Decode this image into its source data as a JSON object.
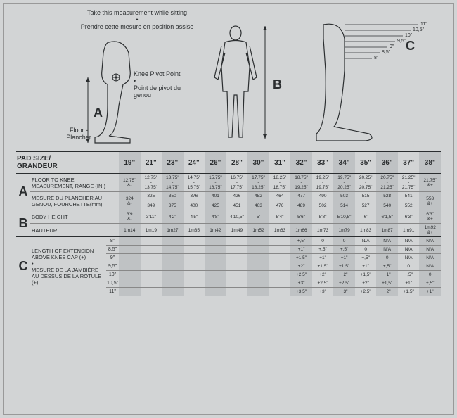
{
  "bg": "#d2d4d5",
  "shade": "#bfc2c4",
  "ink": "#2b2e30",
  "top_text_en": "Take this measurement while sitting",
  "top_text_fr": "Prendre cette mesure en position assise",
  "knee_en": "Knee Pivot Point",
  "knee_fr": "Point de pivot du genou",
  "floor": "Floor - Plancher",
  "c_scale": [
    "11\"",
    "10,5\"",
    "10\"",
    "9,5\"",
    "9\"",
    "8,5\"",
    "8\""
  ],
  "title": "PAD SIZE/ GRANDEUR",
  "sizes": [
    "19\"",
    "21\"",
    "23\"",
    "24\"",
    "26\"",
    "28\"",
    "30\"",
    "31\"",
    "32\"",
    "33\"",
    "34\"",
    "35\"",
    "36\"",
    "37\"",
    "38\""
  ],
  "shaded": [
    0,
    2,
    4,
    6,
    8,
    10,
    12,
    14
  ],
  "A": {
    "hdr_en": "FLOOR TO KNEE MEASUREMENT, RANGE (IN.)",
    "hdr_fr": "MESURE DU PLANCHER AU GENOU, FOURCHETTE(mm)",
    "in": [
      "12,75\" &-",
      "12,75\" - 13,75\"",
      "13,75\" - 14,75\"",
      "14,75\" - 15,75\"",
      "15,75\" - 16,75\"",
      "16,75\" - 17,75\"",
      "17,75\" - 18,25\"",
      "18,25\" - 18,75\"",
      "18,75\" - 19,25\"",
      "19,25\" - 19,75\"",
      "19,75\" - 20,25\"",
      "20,25\" - 20,75\"",
      "20,75\" - 21,25\"",
      "21,25\" - 21,75\"",
      "21,75\" &+"
    ],
    "mm": [
      "324 &-",
      "325 - 349",
      "350 - 375",
      "376 - 400",
      "401 - 425",
      "426 - 451",
      "452 - 463",
      "464 - 476",
      "477 - 489",
      "490 - 502",
      "503 - 514",
      "515 - 527",
      "528 - 540",
      "541 - 552",
      "553 &+"
    ]
  },
  "B": {
    "hdr_en": "BODY HEIGHT",
    "hdr_fr": "HAUTEUR",
    "ft": [
      "3'9 &-",
      "3'11\"",
      "4'2\"",
      "4'5\"",
      "4'8\"",
      "4'10,5\"",
      "5'",
      "5'4\"",
      "5'6\"",
      "5'8\"",
      "5'10,5\"",
      "6'",
      "6'1,5\"",
      "6'3\"",
      "6'3\" &+"
    ],
    "m": [
      "1m14",
      "1m19",
      "1m27",
      "1m35",
      "1m42",
      "1m49",
      "1m52",
      "1m63",
      "1m66",
      "1m73",
      "1m79",
      "1m83",
      "1m87",
      "1m91",
      "1m92 &+"
    ]
  },
  "C": {
    "hdr_en": "LENGTH OF EXTENSION ABOVE KNEE CAP (+)",
    "hdr_fr": "MESURE DE LA JAMBIÈRE AU DESSUS DE LA ROTULE (+)",
    "ext": [
      "8\"",
      "8,5\"",
      "9\"",
      "9,5\"",
      "10\"",
      "10,5\"",
      "11\""
    ],
    "rows": [
      [
        "",
        "",
        "",
        "",
        "",
        "",
        "",
        "",
        "+,5\"",
        "0",
        "0",
        "N/A",
        "N/A",
        "N/A",
        "N/A"
      ],
      [
        "",
        "",
        "",
        "",
        "",
        "",
        "",
        "",
        "+1\"",
        "+,5\"",
        "+,5\"",
        "0",
        "N/A",
        "N/A",
        "N/A"
      ],
      [
        "",
        "",
        "",
        "",
        "",
        "",
        "",
        "",
        "+1,5\"",
        "+1\"",
        "+1\"",
        "+,5\"",
        "0",
        "N/A",
        "N/A"
      ],
      [
        "",
        "",
        "",
        "",
        "",
        "",
        "",
        "",
        "+2\"",
        "+1,5\"",
        "+1,5\"",
        "+1\"",
        "+,5\"",
        "0",
        "N/A"
      ],
      [
        "",
        "",
        "",
        "",
        "",
        "",
        "",
        "",
        "+2,5\"",
        "+2\"",
        "+2\"",
        "+1,5\"",
        "+1\"",
        "+,5\"",
        "0"
      ],
      [
        "",
        "",
        "",
        "",
        "",
        "",
        "",
        "",
        "+3\"",
        "+2,5\"",
        "+2,5\"",
        "+2\"",
        "+1,5\"",
        "+1\"",
        "+,5\""
      ],
      [
        "",
        "",
        "",
        "",
        "",
        "",
        "",
        "",
        "+3,5\"",
        "+3\"",
        "+3\"",
        "+2,5\"",
        "+2\"",
        "+1,5\"",
        "+1\""
      ]
    ]
  }
}
